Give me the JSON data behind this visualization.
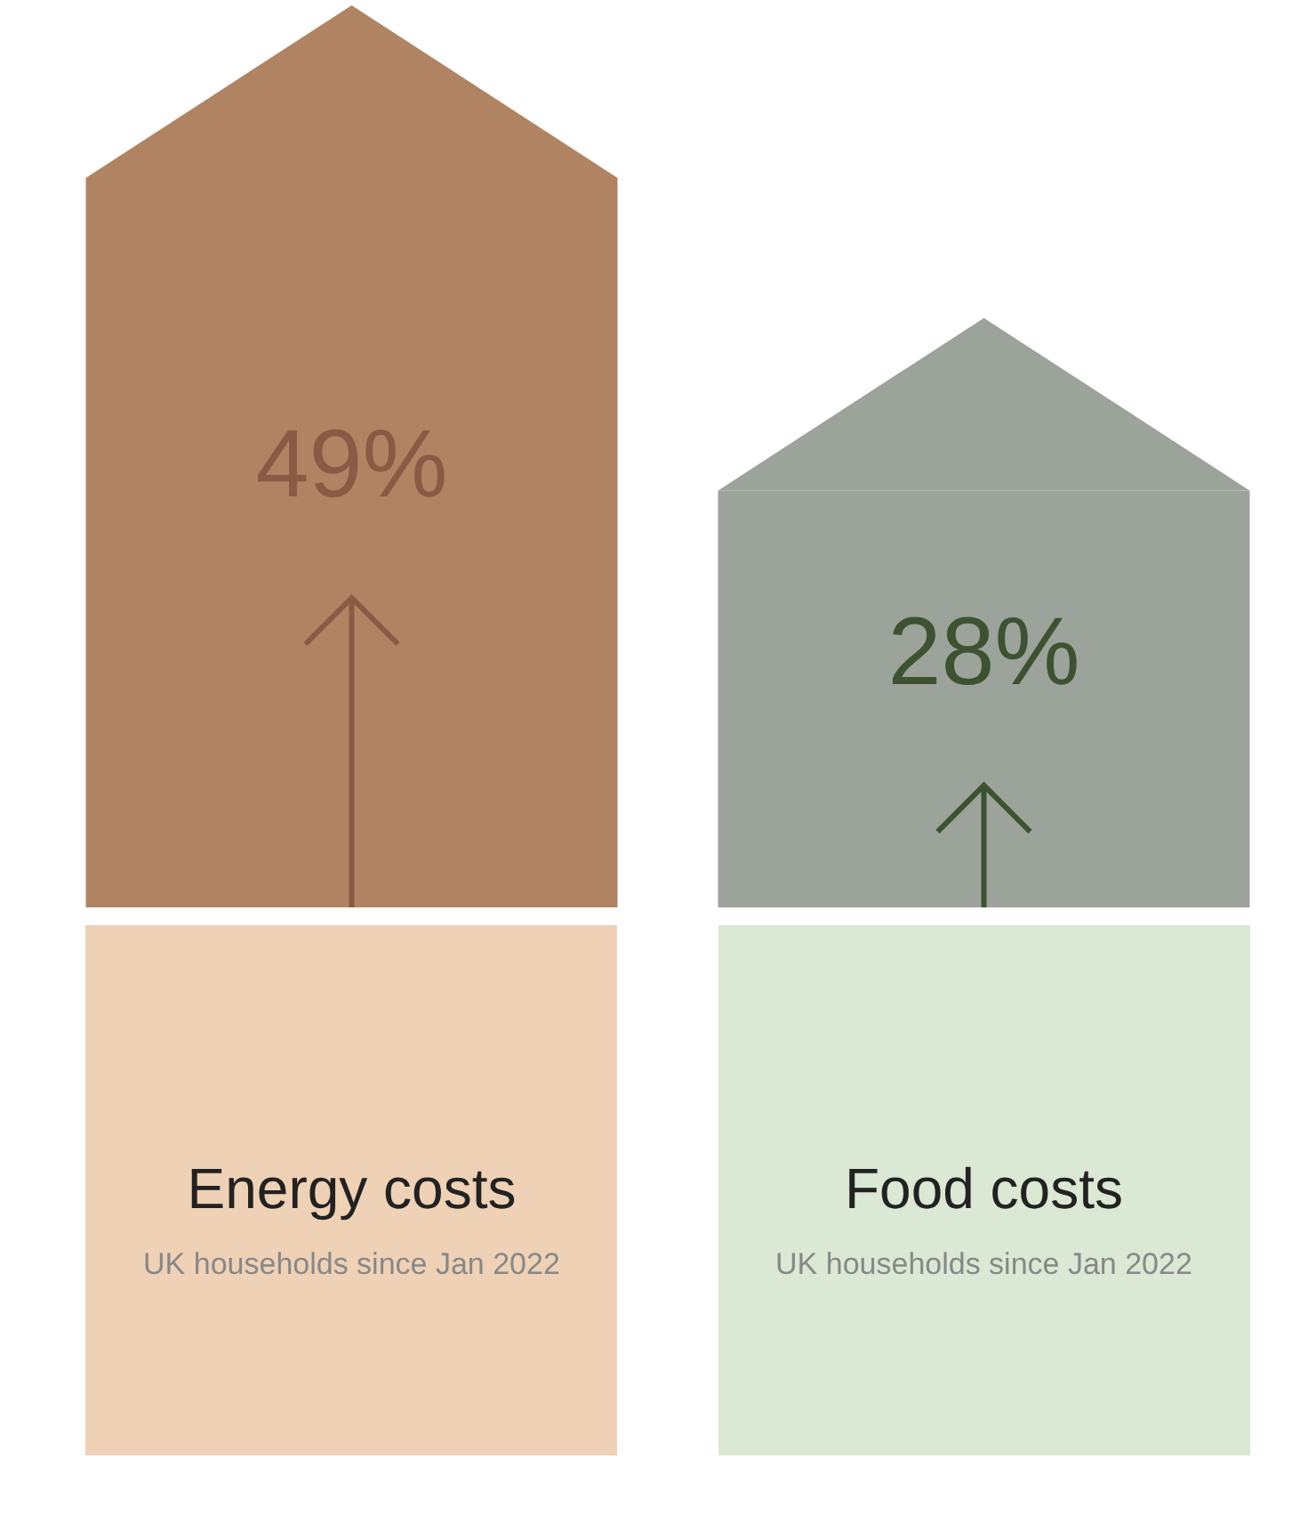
{
  "chart_data": {
    "type": "bar",
    "categories": [
      "Energy costs",
      "Food costs"
    ],
    "values": [
      49,
      28
    ],
    "colors": [
      "#b08463",
      "#9ba39a"
    ],
    "value_labels": [
      "49%",
      "28%"
    ],
    "tick_labels": false,
    "annotations": [
      "UK households since Jan 2022",
      "UK households since Jan 2022"
    ]
  }
}
